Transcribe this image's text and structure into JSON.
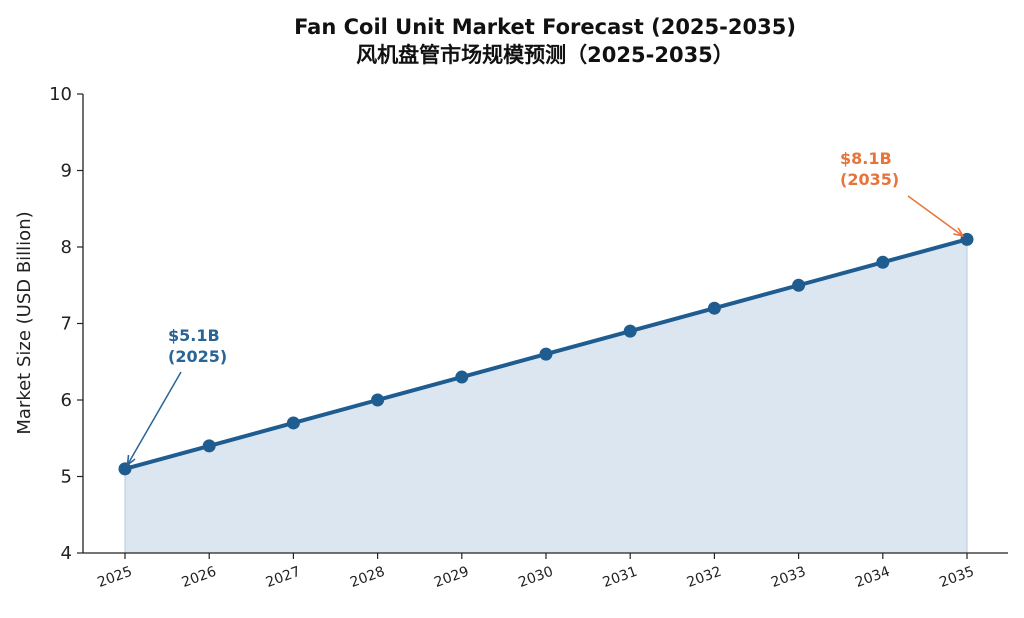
{
  "chart_data": {
    "type": "area",
    "title_line1": "Fan Coil Unit Market Forecast (2025-2035)",
    "title_line2": "风机盘管市场规模预测（2025-2035）",
    "xlabel": "",
    "ylabel": "Market Size (USD Billion)",
    "x": [
      "2025",
      "2026",
      "2027",
      "2028",
      "2029",
      "2030",
      "2031",
      "2032",
      "2033",
      "2034",
      "2035"
    ],
    "series": [
      {
        "values": [
          5.1,
          5.4,
          5.7,
          6.0,
          6.3,
          6.6,
          6.9,
          7.2,
          7.5,
          7.8,
          8.1
        ]
      }
    ],
    "ylim": [
      4,
      10
    ],
    "yticks": [
      "4",
      "5",
      "6",
      "7",
      "8",
      "9",
      "10"
    ],
    "grid": false,
    "colors": {
      "line": "#1f5c8f",
      "fill": "#dce6f0",
      "start_annotation": "#2a6496",
      "end_annotation": "#e8743b"
    },
    "annotations": [
      {
        "id": "start",
        "line1": "$5.1B",
        "line2": "(2025)",
        "x": "2025",
        "y": 5.1
      },
      {
        "id": "end",
        "line1": "$8.1B",
        "line2": "(2035)",
        "x": "2035",
        "y": 8.1
      }
    ]
  }
}
